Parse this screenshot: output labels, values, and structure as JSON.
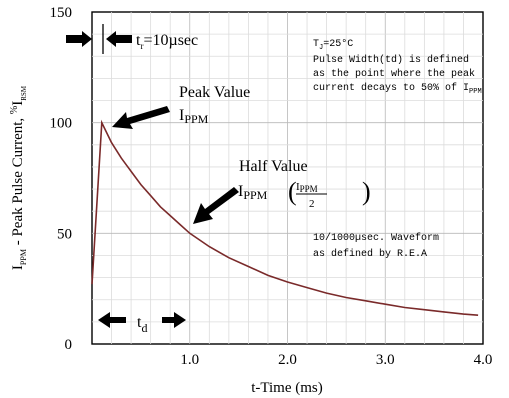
{
  "chart_data": {
    "type": "line",
    "xlabel": "t-Time (ms)",
    "ylabel": "I PPM - Peak Pulse Current, % I RSM",
    "ylabel_parts": {
      "main": "I",
      "sub1": "PPM",
      "rest": " - Peak Pulse Current, ",
      "pct": "%",
      "i": "I",
      "sub2": "RSM"
    },
    "xlim": [
      0,
      4.0
    ],
    "ylim": [
      0,
      150
    ],
    "xticks": [
      {
        "value": 1.0,
        "label": "1.0"
      },
      {
        "value": 2.0,
        "label": "2.0"
      },
      {
        "value": 3.0,
        "label": "3.0"
      },
      {
        "value": 4.0,
        "label": "4.0"
      }
    ],
    "yticks": [
      {
        "value": 0,
        "label": "0"
      },
      {
        "value": 50,
        "label": "50"
      },
      {
        "value": 100,
        "label": "100"
      },
      {
        "value": 150,
        "label": "150"
      }
    ],
    "grid": true,
    "line_color": "#7a2a2a",
    "series": [
      {
        "x": [
          0,
          0.1,
          0.2,
          0.3,
          0.4,
          0.5,
          0.6,
          0.7,
          0.8,
          0.9,
          1.0,
          1.2,
          1.4,
          1.6,
          1.8,
          2.0,
          2.2,
          2.4,
          2.6,
          2.8,
          3.0,
          3.2,
          3.4,
          3.6,
          3.8,
          3.95
        ],
        "y": [
          27,
          100,
          91,
          84,
          78,
          72,
          67,
          62,
          58,
          54,
          50,
          44,
          39,
          35,
          31,
          28,
          25.5,
          23,
          21,
          19.5,
          18,
          16.5,
          15.5,
          14.5,
          13.5,
          13
        ]
      }
    ],
    "annotations": {
      "tr": {
        "t": "t",
        "sub": "r",
        "rest": "=10µsec"
      },
      "conditions": {
        "tj": {
          "t": "T",
          "sub": "J",
          "rest": "=25°C"
        },
        "line1": "Pulse Width(td) is defined",
        "line2": "as the point where the peak",
        "line3_pre": "current decays to 50% of ",
        "line3_i": "I",
        "line3_sub": "PPM"
      },
      "peak": {
        "label": "Peak Value",
        "i": "I",
        "sub": "PPM"
      },
      "half": {
        "label": "Half Value",
        "i": "I",
        "sub": "PPM",
        "frac_num_i": "I",
        "frac_num_sub": "PPM",
        "frac_den": "2"
      },
      "waveform": {
        "line1": "10/1000µsec. Waveform",
        "line2": "as defined by R.E.A"
      },
      "td": {
        "t": "t",
        "sub": "d"
      }
    }
  }
}
